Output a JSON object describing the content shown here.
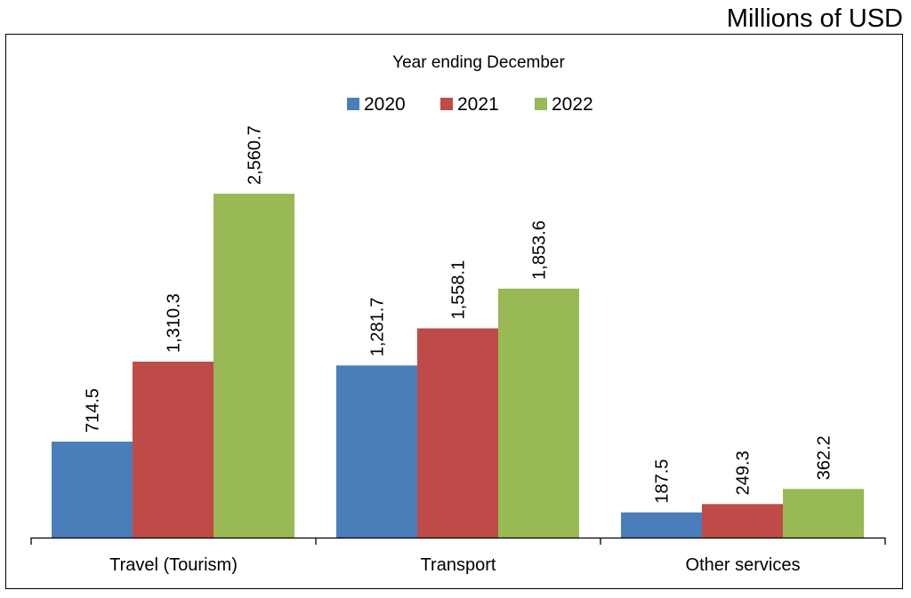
{
  "chart_data": {
    "type": "bar",
    "title": "Millions of USD",
    "legend_title": "Year ending December",
    "legend_placement": "top-center",
    "categories": [
      "Travel (Tourism)",
      "Transport",
      "Other services"
    ],
    "series": [
      {
        "name": "2020",
        "color": "#4a7ebb",
        "values": [
          714.5,
          1281.7,
          187.5
        ],
        "labels": [
          "714.5",
          "1,281.7",
          "187.5"
        ]
      },
      {
        "name": "2021",
        "color": "#be4b48",
        "values": [
          1310.3,
          1558.1,
          249.3
        ],
        "labels": [
          "1,310.3",
          "1,558.1",
          "249.3"
        ]
      },
      {
        "name": "2022",
        "color": "#98b954",
        "values": [
          2560.7,
          1853.6,
          362.2
        ],
        "labels": [
          "2,560.7",
          "1,853.6",
          "362.2"
        ]
      }
    ],
    "xlabel": "",
    "ylabel": "",
    "ylim": [
      0,
      2560.7
    ],
    "grid": false
  }
}
